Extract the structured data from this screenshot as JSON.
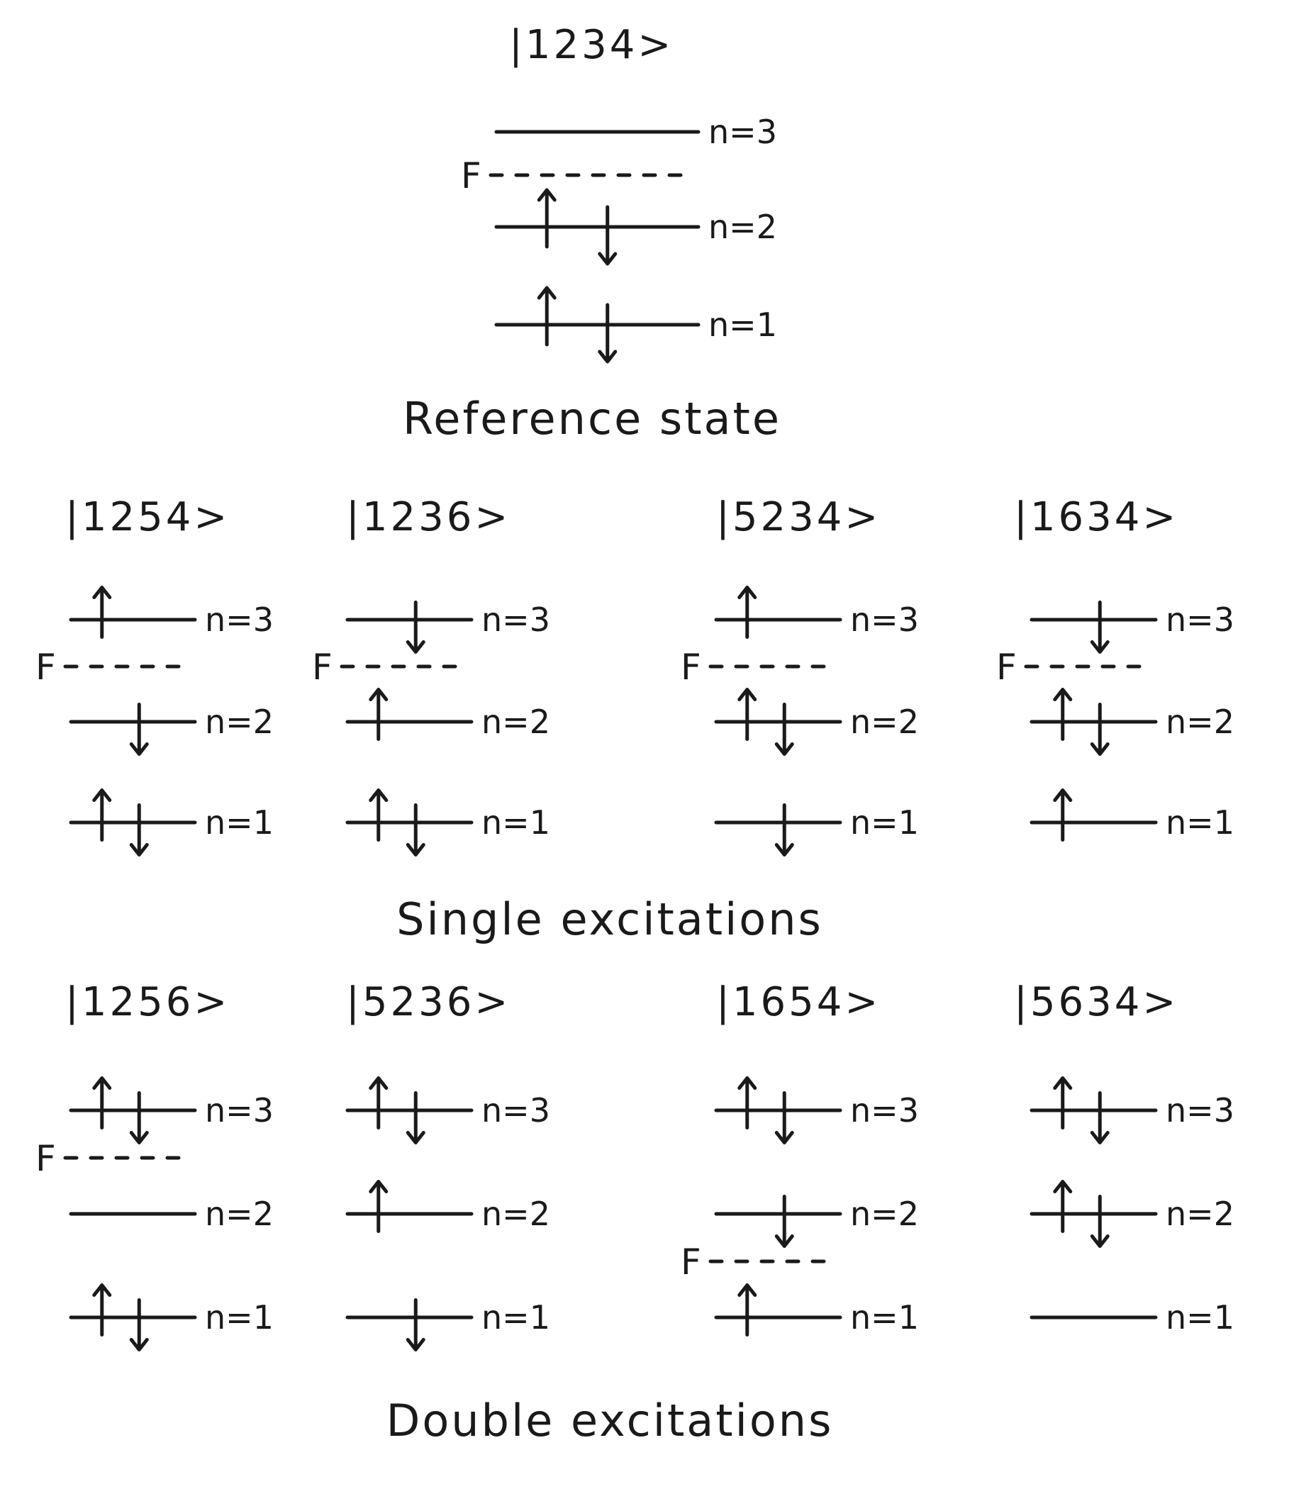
{
  "reference": {
    "ket": "|1234>",
    "fermi_label": "F",
    "levels": [
      {
        "label": "n=3",
        "up": false,
        "down": false
      },
      {
        "label": "n=2",
        "up": true,
        "down": true
      },
      {
        "label": "n=1",
        "up": true,
        "down": true
      }
    ],
    "fermi_between": [
      3,
      2
    ],
    "caption": "Reference state"
  },
  "singles": {
    "caption": "Single excitations",
    "states": [
      {
        "ket": "|1254>",
        "fermi_label": "F",
        "fermi_between": [
          3,
          2
        ],
        "levels": [
          {
            "label": "n=3",
            "up": true,
            "down": false
          },
          {
            "label": "n=2",
            "up": false,
            "down": true
          },
          {
            "label": "n=1",
            "up": true,
            "down": true
          }
        ]
      },
      {
        "ket": "|1236>",
        "fermi_label": "F",
        "fermi_between": [
          3,
          2
        ],
        "levels": [
          {
            "label": "n=3",
            "up": false,
            "down": true
          },
          {
            "label": "n=2",
            "up": true,
            "down": false
          },
          {
            "label": "n=1",
            "up": true,
            "down": true
          }
        ]
      },
      {
        "ket": "|5234>",
        "fermi_label": "F",
        "fermi_between": [
          3,
          2
        ],
        "levels": [
          {
            "label": "n=3",
            "up": true,
            "down": false
          },
          {
            "label": "n=2",
            "up": true,
            "down": true
          },
          {
            "label": "n=1",
            "up": false,
            "down": true
          }
        ]
      },
      {
        "ket": "|1634>",
        "fermi_label": "F",
        "fermi_between": [
          3,
          2
        ],
        "levels": [
          {
            "label": "n=3",
            "up": false,
            "down": true
          },
          {
            "label": "n=2",
            "up": true,
            "down": true
          },
          {
            "label": "n=1",
            "up": true,
            "down": false
          }
        ]
      }
    ]
  },
  "doubles": {
    "caption": "Double excitations",
    "states": [
      {
        "ket": "|1256>",
        "fermi_label": "F",
        "fermi_between": [
          3,
          2
        ],
        "levels": [
          {
            "label": "n=3",
            "up": true,
            "down": true
          },
          {
            "label": "n=2",
            "up": false,
            "down": false
          },
          {
            "label": "n=1",
            "up": true,
            "down": true
          }
        ]
      },
      {
        "ket": "|5236>",
        "fermi_label": "",
        "fermi_between": null,
        "levels": [
          {
            "label": "n=3",
            "up": true,
            "down": true
          },
          {
            "label": "n=2",
            "up": true,
            "down": false
          },
          {
            "label": "n=1",
            "up": false,
            "down": true
          }
        ]
      },
      {
        "ket": "|1654>",
        "fermi_label": "F",
        "fermi_between": [
          2,
          1
        ],
        "levels": [
          {
            "label": "n=3",
            "up": true,
            "down": true
          },
          {
            "label": "n=2",
            "up": false,
            "down": true
          },
          {
            "label": "n=1",
            "up": true,
            "down": false
          }
        ]
      },
      {
        "ket": "|5634>",
        "fermi_label": "",
        "fermi_between": null,
        "levels": [
          {
            "label": "n=3",
            "up": true,
            "down": true
          },
          {
            "label": "n=2",
            "up": true,
            "down": true
          },
          {
            "label": "n=1",
            "up": false,
            "down": false
          }
        ]
      }
    ]
  }
}
